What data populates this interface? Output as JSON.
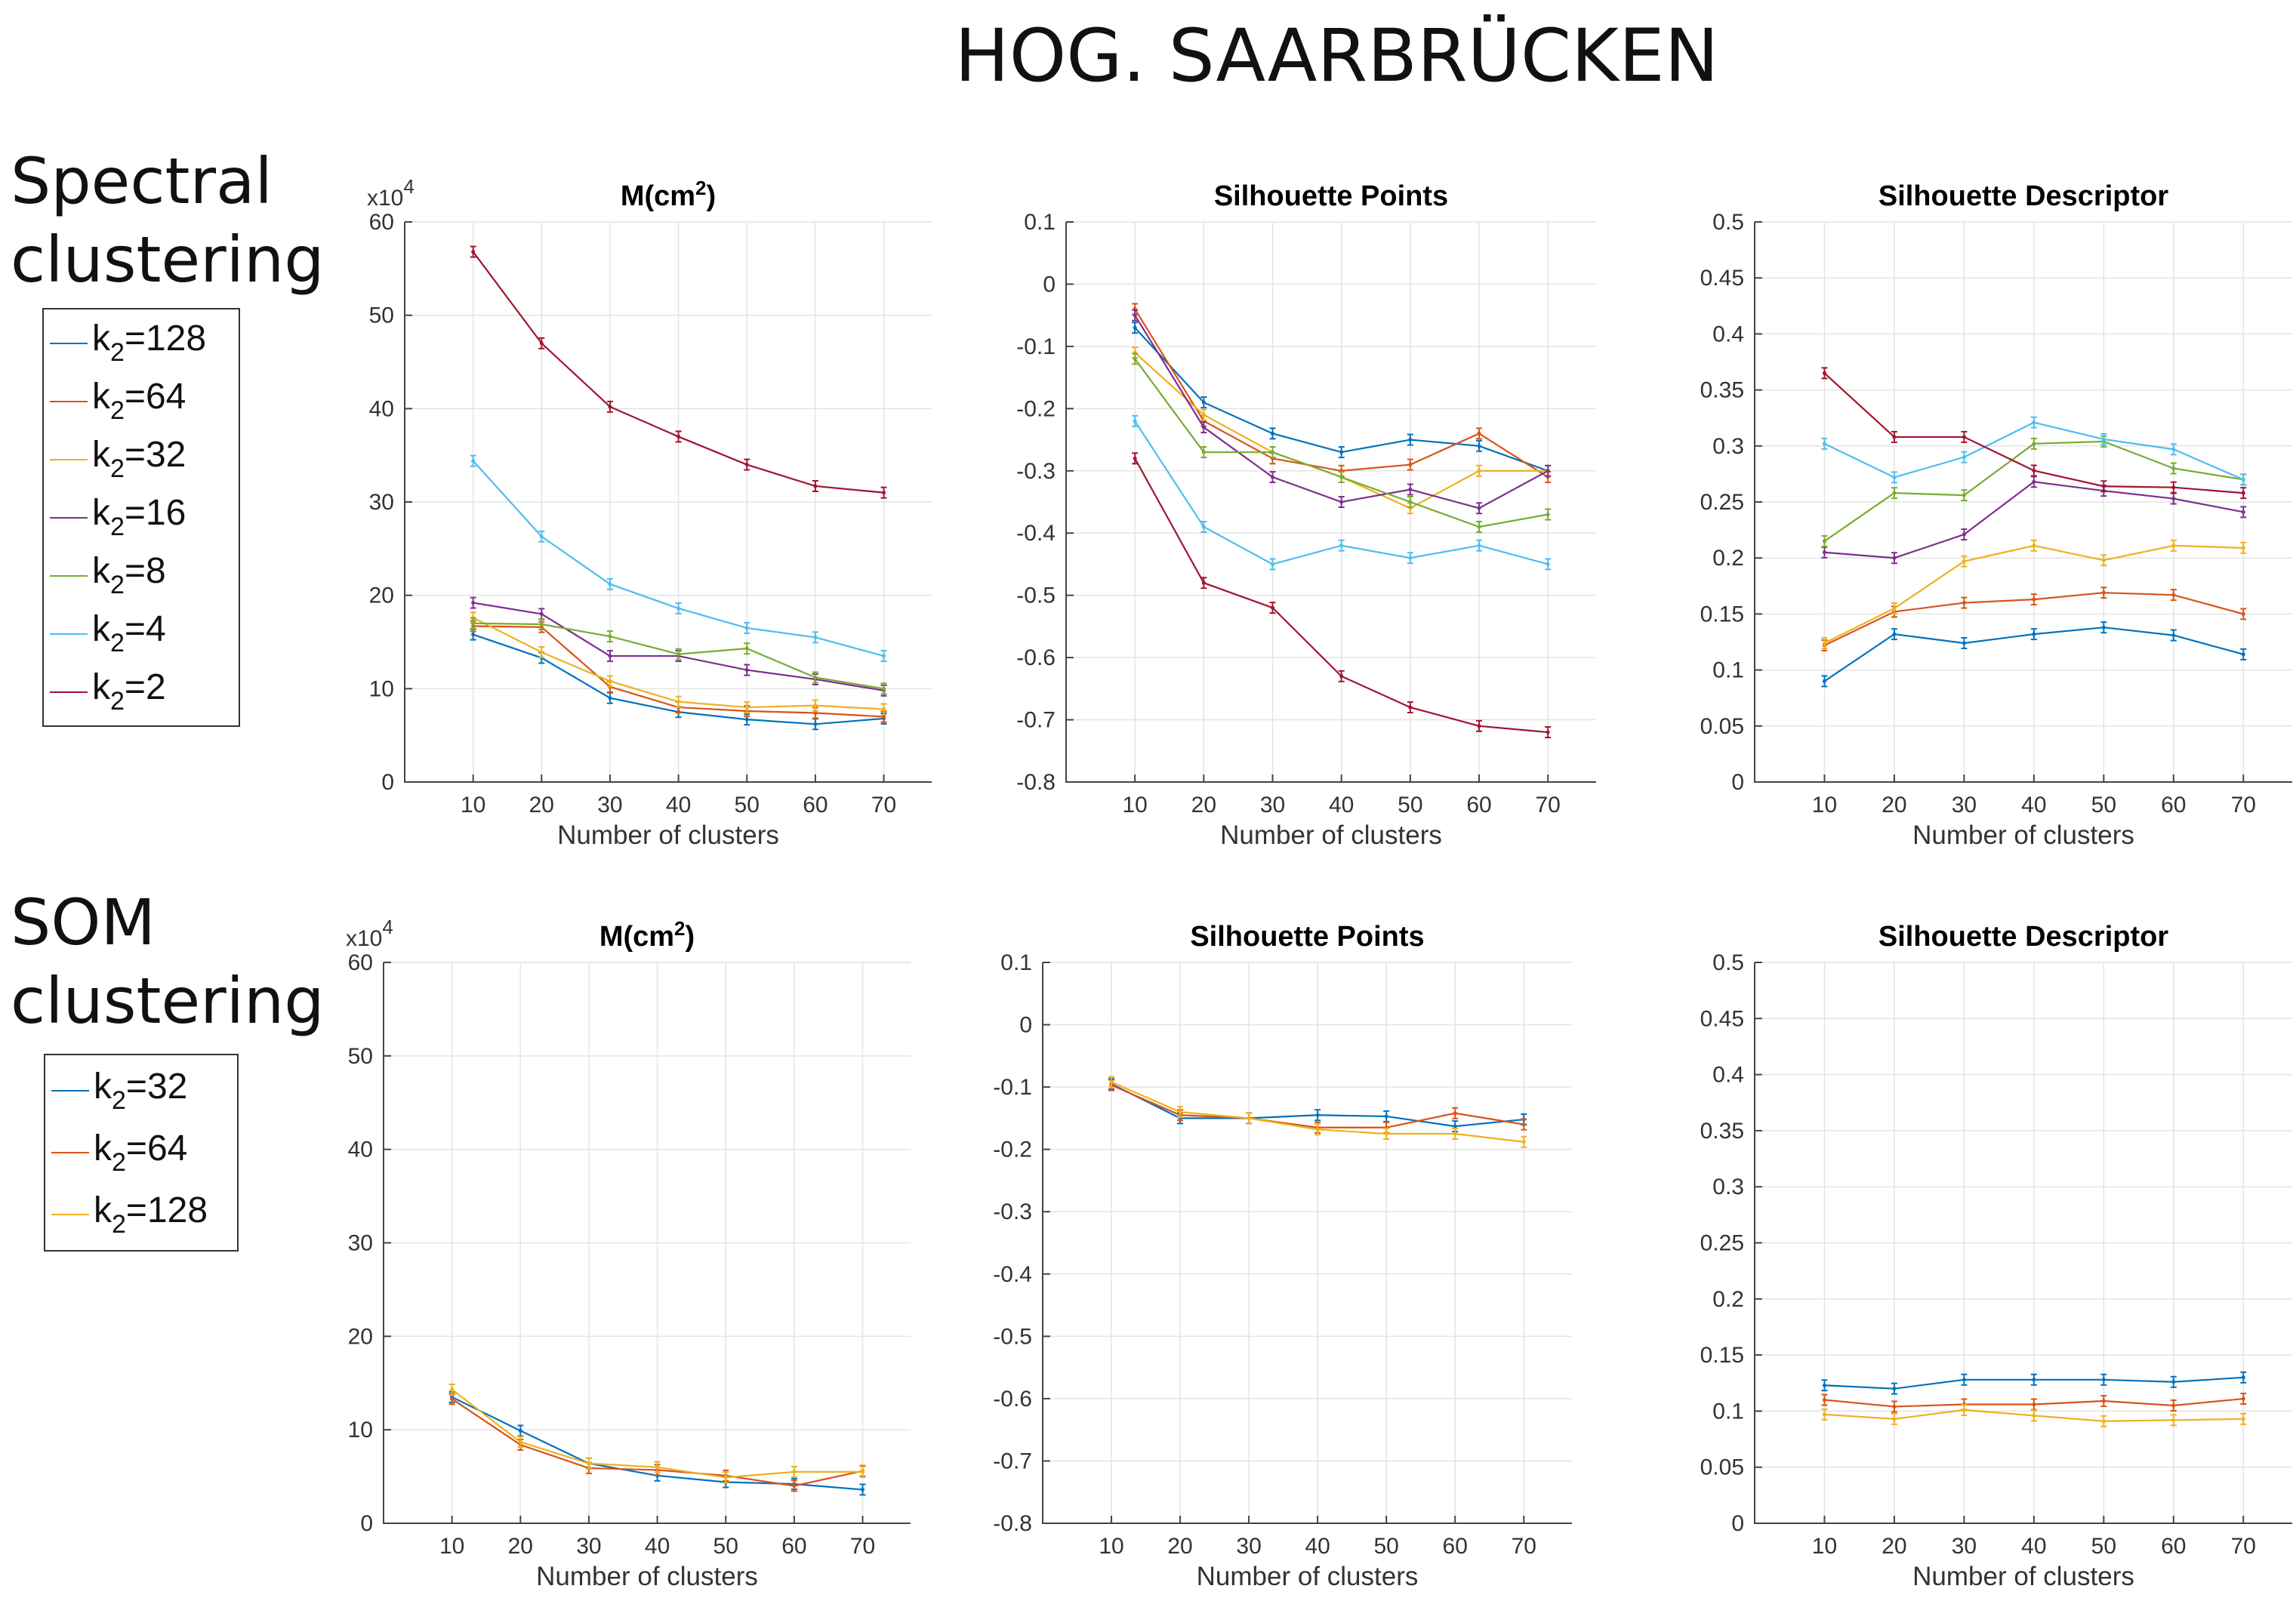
{
  "title": "HOG. SAARBRÜCKEN",
  "rows": [
    {
      "label_line1": "Spectral",
      "label_line2": "clustering"
    },
    {
      "label_line1": "SOM",
      "label_line2": "clustering"
    }
  ],
  "legend_spectral": [
    {
      "prefix": "k",
      "sub": "2",
      "suffix": "=128",
      "color": "#0072BD"
    },
    {
      "prefix": "k",
      "sub": "2",
      "suffix": "=64",
      "color": "#D95319"
    },
    {
      "prefix": "k",
      "sub": "2",
      "suffix": "=32",
      "color": "#EDB120"
    },
    {
      "prefix": "k",
      "sub": "2",
      "suffix": "=16",
      "color": "#7E2F8E"
    },
    {
      "prefix": "k",
      "sub": "2",
      "suffix": "=8",
      "color": "#77AC30"
    },
    {
      "prefix": "k",
      "sub": "2",
      "suffix": "=4",
      "color": "#4DBEEE"
    },
    {
      "prefix": "k",
      "sub": "2",
      "suffix": "=2",
      "color": "#A2142F"
    }
  ],
  "legend_som": [
    {
      "prefix": "k",
      "sub": "2",
      "suffix": "=32",
      "color": "#0072BD"
    },
    {
      "prefix": "k",
      "sub": "2",
      "suffix": "=64",
      "color": "#D95319"
    },
    {
      "prefix": "k",
      "sub": "2",
      "suffix": "=128",
      "color": "#EDB120"
    }
  ],
  "chart_data": [
    {
      "type": "line",
      "title": "M(cm²)",
      "title_base": "M(cm",
      "title_sup": "2",
      "title_end": ")",
      "exponent_label": "x10",
      "exponent_sup": "4",
      "x": [
        10,
        20,
        30,
        40,
        50,
        60,
        70
      ],
      "xlabel": "Number of clusters",
      "ylabel": "",
      "ylim": [
        0,
        60
      ],
      "yticks": [
        0,
        10,
        20,
        30,
        40,
        50,
        60
      ],
      "ytick_labels": [
        "0",
        "10",
        "20",
        "30",
        "40",
        "50",
        "60"
      ],
      "series": [
        {
          "name": "k2=128",
          "color": "#0072BD",
          "values": [
            15.8,
            13.3,
            9.0,
            7.5,
            6.7,
            6.2,
            6.8
          ]
        },
        {
          "name": "k2=64",
          "color": "#D95319",
          "values": [
            16.7,
            16.6,
            10.2,
            8.0,
            7.6,
            7.4,
            7.0
          ]
        },
        {
          "name": "k2=32",
          "color": "#EDB120",
          "values": [
            17.6,
            13.9,
            10.8,
            8.6,
            8.0,
            8.2,
            7.8
          ]
        },
        {
          "name": "k2=16",
          "color": "#7E2F8E",
          "values": [
            19.2,
            18.0,
            13.5,
            13.5,
            12.0,
            11.0,
            9.8
          ]
        },
        {
          "name": "k2=8",
          "color": "#77AC30",
          "values": [
            17.0,
            16.9,
            15.6,
            13.7,
            14.3,
            11.2,
            10.0
          ]
        },
        {
          "name": "k2=4",
          "color": "#4DBEEE",
          "values": [
            34.4,
            26.3,
            21.2,
            18.6,
            16.5,
            15.5,
            13.5
          ]
        },
        {
          "name": "k2=2",
          "color": "#A2142F",
          "values": [
            56.8,
            47.0,
            40.2,
            37.0,
            34.0,
            31.7,
            31.0
          ]
        }
      ]
    },
    {
      "type": "line",
      "title": "Silhouette Points",
      "x": [
        10,
        20,
        30,
        40,
        50,
        60,
        70
      ],
      "xlabel": "Number of clusters",
      "ylabel": "",
      "ylim": [
        -0.8,
        0.1
      ],
      "yticks": [
        -0.8,
        -0.7,
        -0.6,
        -0.5,
        -0.4,
        -0.3,
        -0.2,
        -0.1,
        0,
        0.1
      ],
      "ytick_labels": [
        "-0.8",
        "-0.7",
        "-0.6",
        "-0.5",
        "-0.4",
        "-0.3",
        "-0.2",
        "-0.1",
        "0",
        "0.1"
      ],
      "series": [
        {
          "name": "k2=128",
          "color": "#0072BD",
          "values": [
            -0.07,
            -0.19,
            -0.24,
            -0.27,
            -0.25,
            -0.26,
            -0.3
          ]
        },
        {
          "name": "k2=64",
          "color": "#D95319",
          "values": [
            -0.04,
            -0.22,
            -0.28,
            -0.3,
            -0.29,
            -0.24,
            -0.31
          ]
        },
        {
          "name": "k2=32",
          "color": "#EDB120",
          "values": [
            -0.11,
            -0.21,
            -0.27,
            -0.31,
            -0.36,
            -0.3,
            -0.3
          ]
        },
        {
          "name": "k2=16",
          "color": "#7E2F8E",
          "values": [
            -0.05,
            -0.23,
            -0.31,
            -0.35,
            -0.33,
            -0.36,
            -0.3
          ]
        },
        {
          "name": "k2=8",
          "color": "#77AC30",
          "values": [
            -0.12,
            -0.27,
            -0.27,
            -0.31,
            -0.35,
            -0.39,
            -0.37
          ]
        },
        {
          "name": "k2=4",
          "color": "#4DBEEE",
          "values": [
            -0.22,
            -0.39,
            -0.45,
            -0.42,
            -0.44,
            -0.42,
            -0.45
          ]
        },
        {
          "name": "k2=2",
          "color": "#A2142F",
          "values": [
            -0.28,
            -0.48,
            -0.52,
            -0.63,
            -0.68,
            -0.71,
            -0.72
          ]
        }
      ]
    },
    {
      "type": "line",
      "title": "Silhouette Descriptor",
      "x": [
        10,
        20,
        30,
        40,
        50,
        60,
        70
      ],
      "xlabel": "Number of clusters",
      "ylabel": "",
      "ylim": [
        0,
        0.5
      ],
      "yticks": [
        0,
        0.05,
        0.1,
        0.15,
        0.2,
        0.25,
        0.3,
        0.35,
        0.4,
        0.45,
        0.5
      ],
      "ytick_labels": [
        "0",
        "0.05",
        "0.1",
        "0.15",
        "0.2",
        "0.25",
        "0.3",
        "0.35",
        "0.4",
        "0.45",
        "0.5"
      ],
      "series": [
        {
          "name": "k2=128",
          "color": "#0072BD",
          "values": [
            0.09,
            0.132,
            0.124,
            0.132,
            0.138,
            0.131,
            0.114
          ]
        },
        {
          "name": "k2=64",
          "color": "#D95319",
          "values": [
            0.122,
            0.152,
            0.16,
            0.163,
            0.169,
            0.167,
            0.15
          ]
        },
        {
          "name": "k2=32",
          "color": "#EDB120",
          "values": [
            0.124,
            0.155,
            0.197,
            0.211,
            0.198,
            0.211,
            0.209
          ]
        },
        {
          "name": "k2=16",
          "color": "#7E2F8E",
          "values": [
            0.205,
            0.2,
            0.221,
            0.268,
            0.26,
            0.253,
            0.241
          ]
        },
        {
          "name": "k2=8",
          "color": "#77AC30",
          "values": [
            0.215,
            0.258,
            0.256,
            0.302,
            0.304,
            0.28,
            0.27
          ]
        },
        {
          "name": "k2=4",
          "color": "#4DBEEE",
          "values": [
            0.302,
            0.272,
            0.29,
            0.321,
            0.306,
            0.297,
            0.27
          ]
        },
        {
          "name": "k2=2",
          "color": "#A2142F",
          "values": [
            0.365,
            0.308,
            0.308,
            0.278,
            0.264,
            0.263,
            0.258
          ]
        }
      ]
    },
    {
      "type": "line",
      "title": "M(cm²)",
      "title_base": "M(cm",
      "title_sup": "2",
      "title_end": ")",
      "exponent_label": "x10",
      "exponent_sup": "4",
      "x": [
        10,
        20,
        30,
        40,
        50,
        60,
        70
      ],
      "xlabel": "Number of clusters",
      "ylabel": "",
      "ylim": [
        0,
        60
      ],
      "yticks": [
        0,
        10,
        20,
        30,
        40,
        50,
        60
      ],
      "ytick_labels": [
        "0",
        "10",
        "20",
        "30",
        "40",
        "50",
        "60"
      ],
      "series": [
        {
          "name": "k2=32",
          "color": "#0072BD",
          "values": [
            13.5,
            9.9,
            6.4,
            5.1,
            4.4,
            4.2,
            3.6
          ]
        },
        {
          "name": "k2=64",
          "color": "#D95319",
          "values": [
            13.3,
            8.4,
            5.9,
            5.7,
            5.1,
            4.0,
            5.6
          ]
        },
        {
          "name": "k2=128",
          "color": "#EDB120",
          "values": [
            14.3,
            8.7,
            6.4,
            6.0,
            4.9,
            5.5,
            5.5
          ]
        }
      ]
    },
    {
      "type": "line",
      "title": "Silhouette Points",
      "x": [
        10,
        20,
        30,
        40,
        50,
        60,
        70
      ],
      "xlabel": "Number of clusters",
      "ylabel": "",
      "ylim": [
        -0.8,
        0.1
      ],
      "yticks": [
        -0.8,
        -0.7,
        -0.6,
        -0.5,
        -0.4,
        -0.3,
        -0.2,
        -0.1,
        0,
        0.1
      ],
      "ytick_labels": [
        "-0.8",
        "-0.7",
        "-0.6",
        "-0.5",
        "-0.4",
        "-0.3",
        "-0.2",
        "-0.1",
        "0",
        "0.1"
      ],
      "series": [
        {
          "name": "k2=32",
          "color": "#0072BD",
          "values": [
            -0.095,
            -0.15,
            -0.15,
            -0.145,
            -0.147,
            -0.163,
            -0.152
          ]
        },
        {
          "name": "k2=64",
          "color": "#D95319",
          "values": [
            -0.097,
            -0.145,
            -0.15,
            -0.165,
            -0.165,
            -0.142,
            -0.16
          ]
        },
        {
          "name": "k2=128",
          "color": "#EDB120",
          "values": [
            -0.092,
            -0.14,
            -0.15,
            -0.168,
            -0.175,
            -0.175,
            -0.188
          ]
        }
      ]
    },
    {
      "type": "line",
      "title": "Silhouette Descriptor",
      "x": [
        10,
        20,
        30,
        40,
        50,
        60,
        70
      ],
      "xlabel": "Number of clusters",
      "ylabel": "",
      "ylim": [
        0,
        0.5
      ],
      "yticks": [
        0,
        0.05,
        0.1,
        0.15,
        0.2,
        0.25,
        0.3,
        0.35,
        0.4,
        0.45,
        0.5
      ],
      "ytick_labels": [
        "0",
        "0.05",
        "0.1",
        "0.15",
        "0.2",
        "0.25",
        "0.3",
        "0.35",
        "0.4",
        "0.45",
        "0.5"
      ],
      "series": [
        {
          "name": "k2=32",
          "color": "#0072BD",
          "values": [
            0.123,
            0.12,
            0.128,
            0.128,
            0.128,
            0.126,
            0.13
          ]
        },
        {
          "name": "k2=64",
          "color": "#D95319",
          "values": [
            0.11,
            0.104,
            0.106,
            0.106,
            0.109,
            0.105,
            0.111
          ]
        },
        {
          "name": "k2=128",
          "color": "#EDB120",
          "values": [
            0.097,
            0.093,
            0.101,
            0.096,
            0.091,
            0.092,
            0.093
          ]
        }
      ]
    }
  ]
}
